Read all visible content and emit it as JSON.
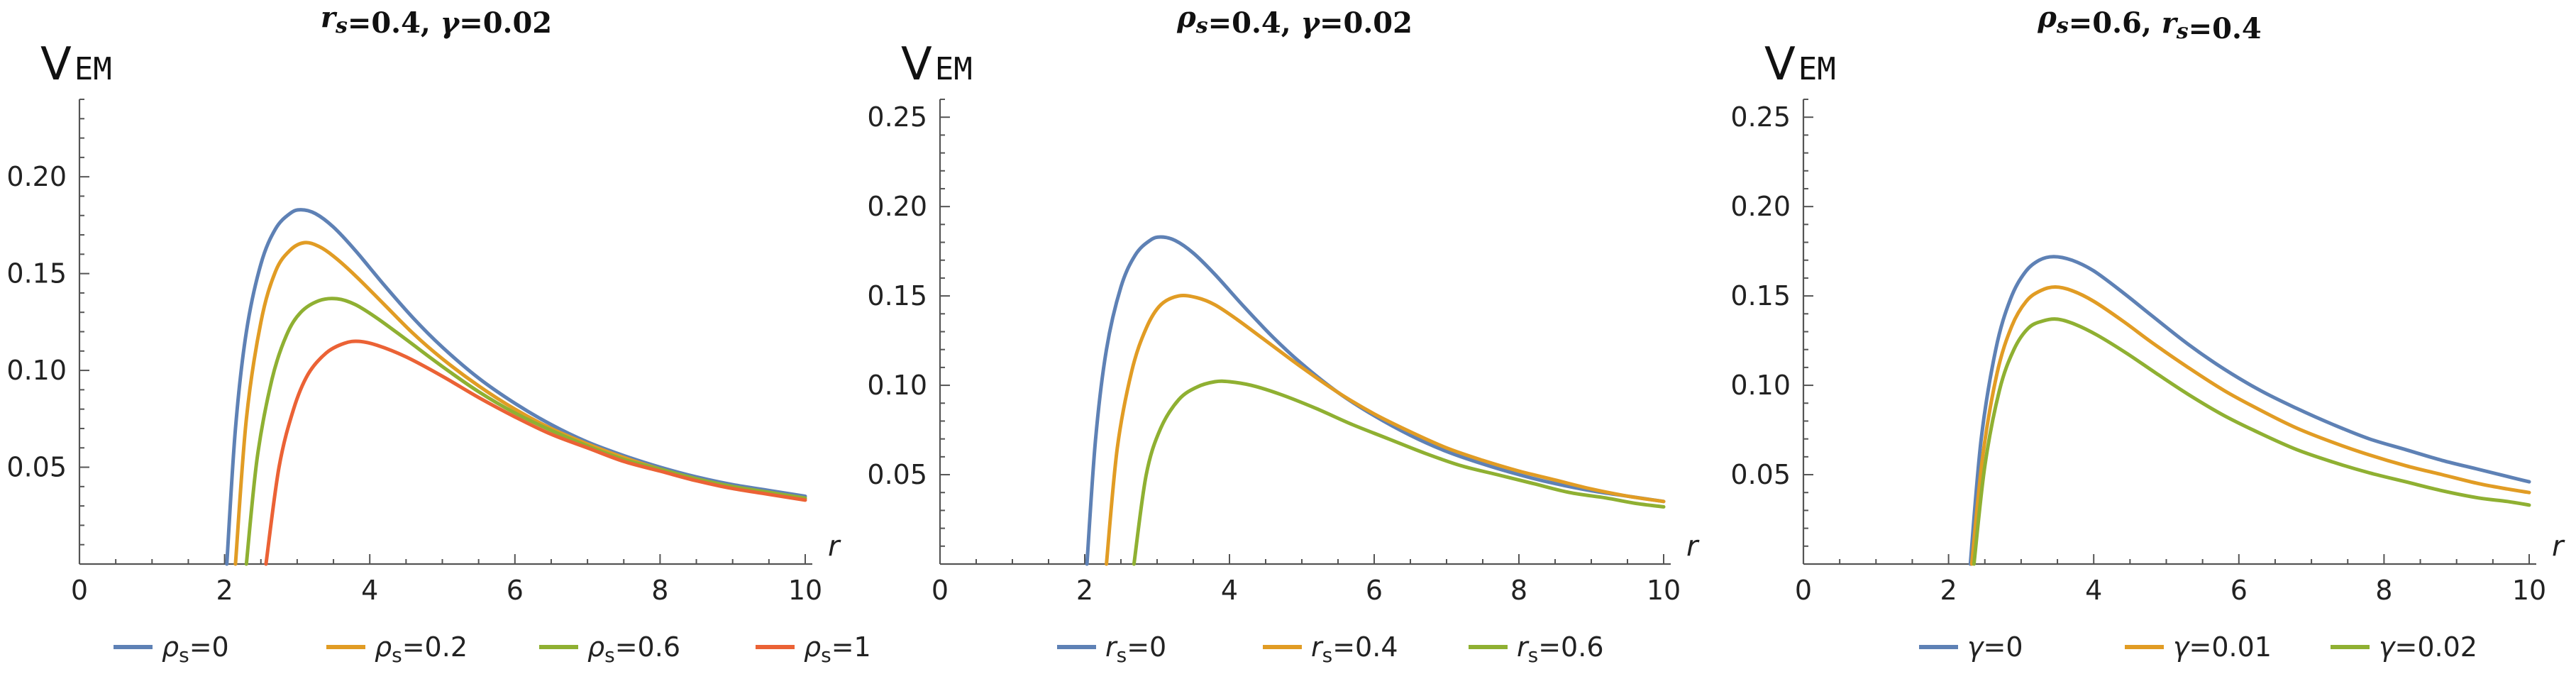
{
  "chart_data": [
    {
      "type": "line",
      "title_html": [
        "r",
        "s",
        "=0.4, ",
        "γ",
        "=0.02"
      ],
      "ylabel_main": "V",
      "ylabel_sub": "EM",
      "xlabel": "r",
      "xlim": [
        0,
        10
      ],
      "ylim": [
        0,
        0.24
      ],
      "xticks": [
        "0",
        "2",
        "4",
        "6",
        "8",
        "10"
      ],
      "yticks": [
        "0.05",
        "0.10",
        "0.15",
        "0.20"
      ],
      "series": [
        {
          "name_parts": [
            "ρ",
            "s",
            "=0"
          ],
          "color": "#5e81b5",
          "x": [
            2.03,
            2.15,
            2.3,
            2.5,
            2.7,
            2.9,
            3.05,
            3.25,
            3.5,
            3.8,
            4.2,
            4.6,
            5.0,
            5.5,
            6.0,
            6.5,
            7.0,
            7.5,
            8.0,
            8.5,
            9.0,
            9.5,
            10.0
          ],
          "y": [
            0.0,
            0.07,
            0.12,
            0.155,
            0.173,
            0.181,
            0.183,
            0.181,
            0.174,
            0.162,
            0.144,
            0.127,
            0.112,
            0.096,
            0.083,
            0.072,
            0.063,
            0.056,
            0.05,
            0.045,
            0.041,
            0.038,
            0.035
          ]
        },
        {
          "name_parts": [
            "ρ",
            "s",
            "=0.2"
          ],
          "color": "#e19c24",
          "x": [
            2.15,
            2.3,
            2.5,
            2.7,
            2.9,
            3.1,
            3.3,
            3.5,
            3.8,
            4.2,
            4.6,
            5.0,
            5.5,
            6.0,
            6.5,
            7.0,
            7.5,
            8.0,
            8.5,
            9.0,
            9.5,
            10.0
          ],
          "y": [
            0.0,
            0.075,
            0.125,
            0.151,
            0.162,
            0.166,
            0.164,
            0.159,
            0.149,
            0.134,
            0.119,
            0.106,
            0.092,
            0.08,
            0.07,
            0.062,
            0.055,
            0.049,
            0.044,
            0.04,
            0.037,
            0.034
          ]
        },
        {
          "name_parts": [
            "ρ",
            "s",
            "=0.6"
          ],
          "color": "#8fb032",
          "x": [
            2.3,
            2.45,
            2.65,
            2.85,
            3.05,
            3.3,
            3.55,
            3.8,
            4.1,
            4.5,
            5.0,
            5.5,
            6.0,
            6.5,
            7.0,
            7.5,
            8.0,
            8.5,
            9.0,
            9.5,
            10.0
          ],
          "y": [
            0.0,
            0.055,
            0.095,
            0.118,
            0.13,
            0.136,
            0.137,
            0.134,
            0.127,
            0.116,
            0.102,
            0.089,
            0.078,
            0.069,
            0.061,
            0.054,
            0.049,
            0.044,
            0.04,
            0.037,
            0.034
          ]
        },
        {
          "name_parts": [
            "ρ",
            "s",
            "=1"
          ],
          "color": "#eb6235",
          "x": [
            2.57,
            2.75,
            2.95,
            3.15,
            3.4,
            3.65,
            3.85,
            4.1,
            4.5,
            5.0,
            5.5,
            6.0,
            6.5,
            7.0,
            7.5,
            8.0,
            8.5,
            9.0,
            9.5,
            10.0
          ],
          "y": [
            0.0,
            0.05,
            0.08,
            0.098,
            0.109,
            0.114,
            0.115,
            0.113,
            0.107,
            0.097,
            0.086,
            0.076,
            0.067,
            0.06,
            0.053,
            0.048,
            0.043,
            0.039,
            0.036,
            0.033
          ]
        }
      ]
    },
    {
      "type": "line",
      "title_html": [
        "ρ",
        "s",
        "=0.4, ",
        "γ",
        "=0.02"
      ],
      "ylabel_main": "V",
      "ylabel_sub": "EM",
      "xlabel": "r",
      "xlim": [
        0,
        10
      ],
      "ylim": [
        0,
        0.26
      ],
      "xticks": [
        "0",
        "2",
        "4",
        "6",
        "8",
        "10"
      ],
      "yticks": [
        "0.05",
        "0.10",
        "0.15",
        "0.20",
        "0.25"
      ],
      "series": [
        {
          "name_parts": [
            "r",
            "s",
            "=0"
          ],
          "color": "#5e81b5",
          "x": [
            2.03,
            2.15,
            2.3,
            2.5,
            2.7,
            2.9,
            3.05,
            3.25,
            3.5,
            3.8,
            4.2,
            4.6,
            5.0,
            5.5,
            6.0,
            6.5,
            7.0,
            7.5,
            8.0,
            8.5,
            9.0,
            9.5,
            10.0
          ],
          "y": [
            0.0,
            0.07,
            0.12,
            0.155,
            0.173,
            0.181,
            0.183,
            0.181,
            0.174,
            0.162,
            0.144,
            0.127,
            0.112,
            0.096,
            0.083,
            0.072,
            0.063,
            0.056,
            0.05,
            0.045,
            0.041,
            0.038,
            0.035
          ]
        },
        {
          "name_parts": [
            "r",
            "s",
            "=0.4"
          ],
          "color": "#e19c24",
          "x": [
            2.3,
            2.45,
            2.65,
            2.85,
            3.05,
            3.3,
            3.55,
            3.8,
            4.1,
            4.5,
            5.0,
            5.5,
            6.0,
            6.5,
            7.0,
            7.5,
            8.0,
            8.5,
            9.0,
            9.5,
            10.0
          ],
          "y": [
            0.0,
            0.065,
            0.108,
            0.132,
            0.145,
            0.15,
            0.149,
            0.145,
            0.137,
            0.125,
            0.11,
            0.096,
            0.084,
            0.074,
            0.065,
            0.058,
            0.052,
            0.047,
            0.042,
            0.038,
            0.035
          ]
        },
        {
          "name_parts": [
            "r",
            "s",
            "=0.6"
          ],
          "color": "#8fb032",
          "x": [
            2.68,
            2.85,
            3.05,
            3.3,
            3.55,
            3.8,
            4.0,
            4.3,
            4.7,
            5.2,
            5.7,
            6.2,
            6.7,
            7.2,
            7.7,
            8.2,
            8.7,
            9.2,
            9.6,
            10.0
          ],
          "y": [
            0.0,
            0.05,
            0.076,
            0.092,
            0.099,
            0.102,
            0.102,
            0.1,
            0.095,
            0.087,
            0.078,
            0.07,
            0.062,
            0.055,
            0.05,
            0.045,
            0.04,
            0.037,
            0.034,
            0.032
          ]
        }
      ]
    },
    {
      "type": "line",
      "title_html": [
        "ρ",
        "s",
        "=0.6, ",
        "r",
        "s",
        "=0.4"
      ],
      "ylabel_main": "V",
      "ylabel_sub": "EM",
      "xlabel": "r",
      "xlim": [
        0,
        10
      ],
      "ylim": [
        0,
        0.26
      ],
      "xticks": [
        "0",
        "2",
        "4",
        "6",
        "8",
        "10"
      ],
      "yticks": [
        "0.05",
        "0.10",
        "0.15",
        "0.20",
        "0.25"
      ],
      "series": [
        {
          "name_parts": [
            "γ",
            "",
            "=0"
          ],
          "color": "#5e81b5",
          "x": [
            2.3,
            2.45,
            2.65,
            2.85,
            3.05,
            3.25,
            3.45,
            3.7,
            4.0,
            4.4,
            4.8,
            5.3,
            5.8,
            6.3,
            6.8,
            7.3,
            7.8,
            8.3,
            8.8,
            9.3,
            9.7,
            10.0
          ],
          "y": [
            0.0,
            0.07,
            0.12,
            0.148,
            0.163,
            0.17,
            0.172,
            0.17,
            0.164,
            0.152,
            0.139,
            0.123,
            0.109,
            0.097,
            0.087,
            0.078,
            0.07,
            0.064,
            0.058,
            0.053,
            0.049,
            0.046
          ]
        },
        {
          "name_parts": [
            "γ",
            "",
            "=0.01"
          ],
          "color": "#e19c24",
          "x": [
            2.32,
            2.47,
            2.67,
            2.87,
            3.07,
            3.27,
            3.47,
            3.7,
            4.0,
            4.4,
            4.8,
            5.3,
            5.8,
            6.3,
            6.8,
            7.3,
            7.8,
            8.3,
            8.8,
            9.3,
            9.7,
            10.0
          ],
          "y": [
            0.0,
            0.06,
            0.107,
            0.133,
            0.147,
            0.153,
            0.155,
            0.153,
            0.147,
            0.136,
            0.124,
            0.11,
            0.097,
            0.086,
            0.076,
            0.068,
            0.061,
            0.055,
            0.05,
            0.045,
            0.042,
            0.04
          ]
        },
        {
          "name_parts": [
            "γ",
            "",
            "=0.02"
          ],
          "color": "#8fb032",
          "x": [
            2.35,
            2.5,
            2.7,
            2.9,
            3.1,
            3.3,
            3.5,
            3.75,
            4.05,
            4.45,
            4.85,
            5.3,
            5.8,
            6.3,
            6.8,
            7.3,
            7.8,
            8.3,
            8.8,
            9.3,
            9.7,
            10.0
          ],
          "y": [
            0.0,
            0.055,
            0.097,
            0.12,
            0.132,
            0.136,
            0.137,
            0.134,
            0.128,
            0.118,
            0.107,
            0.095,
            0.083,
            0.073,
            0.064,
            0.057,
            0.051,
            0.046,
            0.041,
            0.037,
            0.035,
            0.033
          ]
        }
      ]
    }
  ]
}
